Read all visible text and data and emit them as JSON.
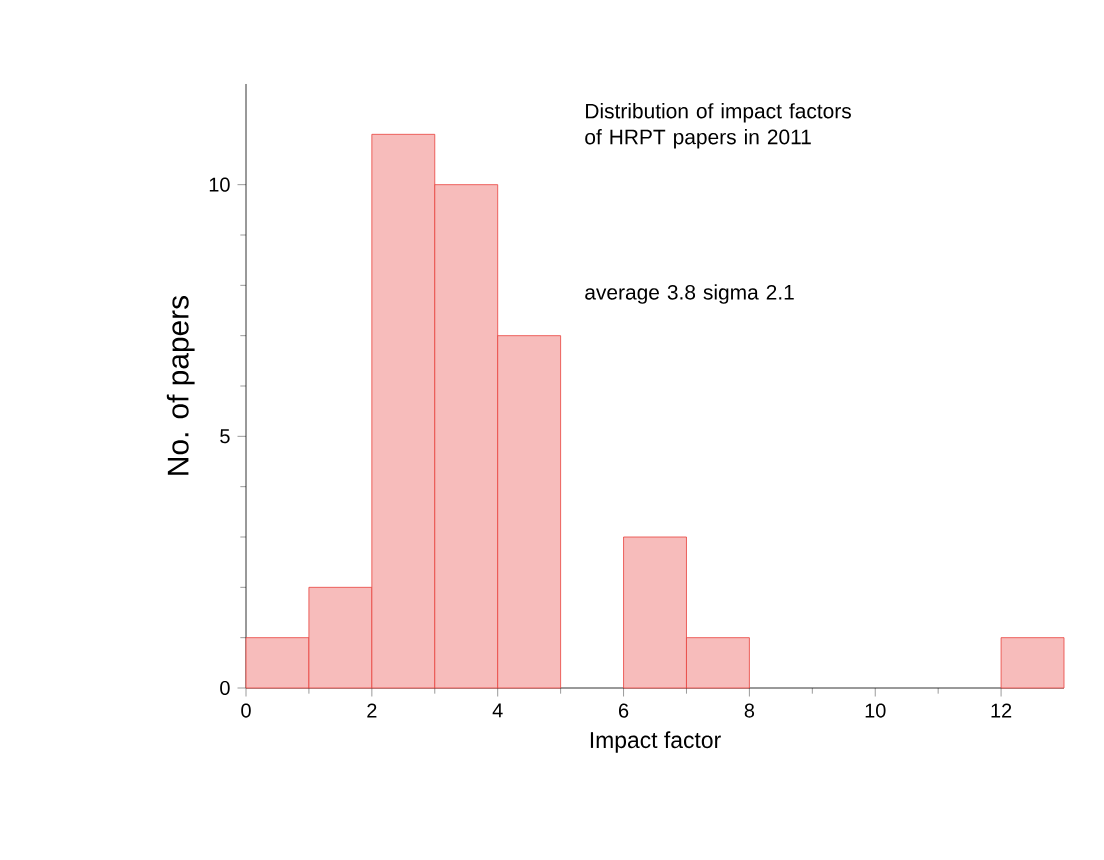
{
  "chart_data": {
    "type": "histogram",
    "xlabel": "Impact factor",
    "ylabel": "No. of papers",
    "bins": [
      0,
      1,
      2,
      3,
      4,
      5,
      6,
      7,
      8,
      9,
      10,
      11,
      12,
      13
    ],
    "values": [
      1,
      2,
      11,
      10,
      7,
      0,
      3,
      1,
      0,
      0,
      0,
      0,
      1
    ],
    "color": "#e8413c",
    "xlim": [
      0,
      13
    ],
    "xticks": [
      0,
      2,
      4,
      6,
      8,
      10,
      12
    ],
    "ylim": [
      0,
      12
    ],
    "yticks": [
      0,
      5,
      10
    ],
    "annotations": [
      "Distribution of impact factors of HRPT papers in 2011",
      "average 3.8 sigma 2.1"
    ]
  }
}
